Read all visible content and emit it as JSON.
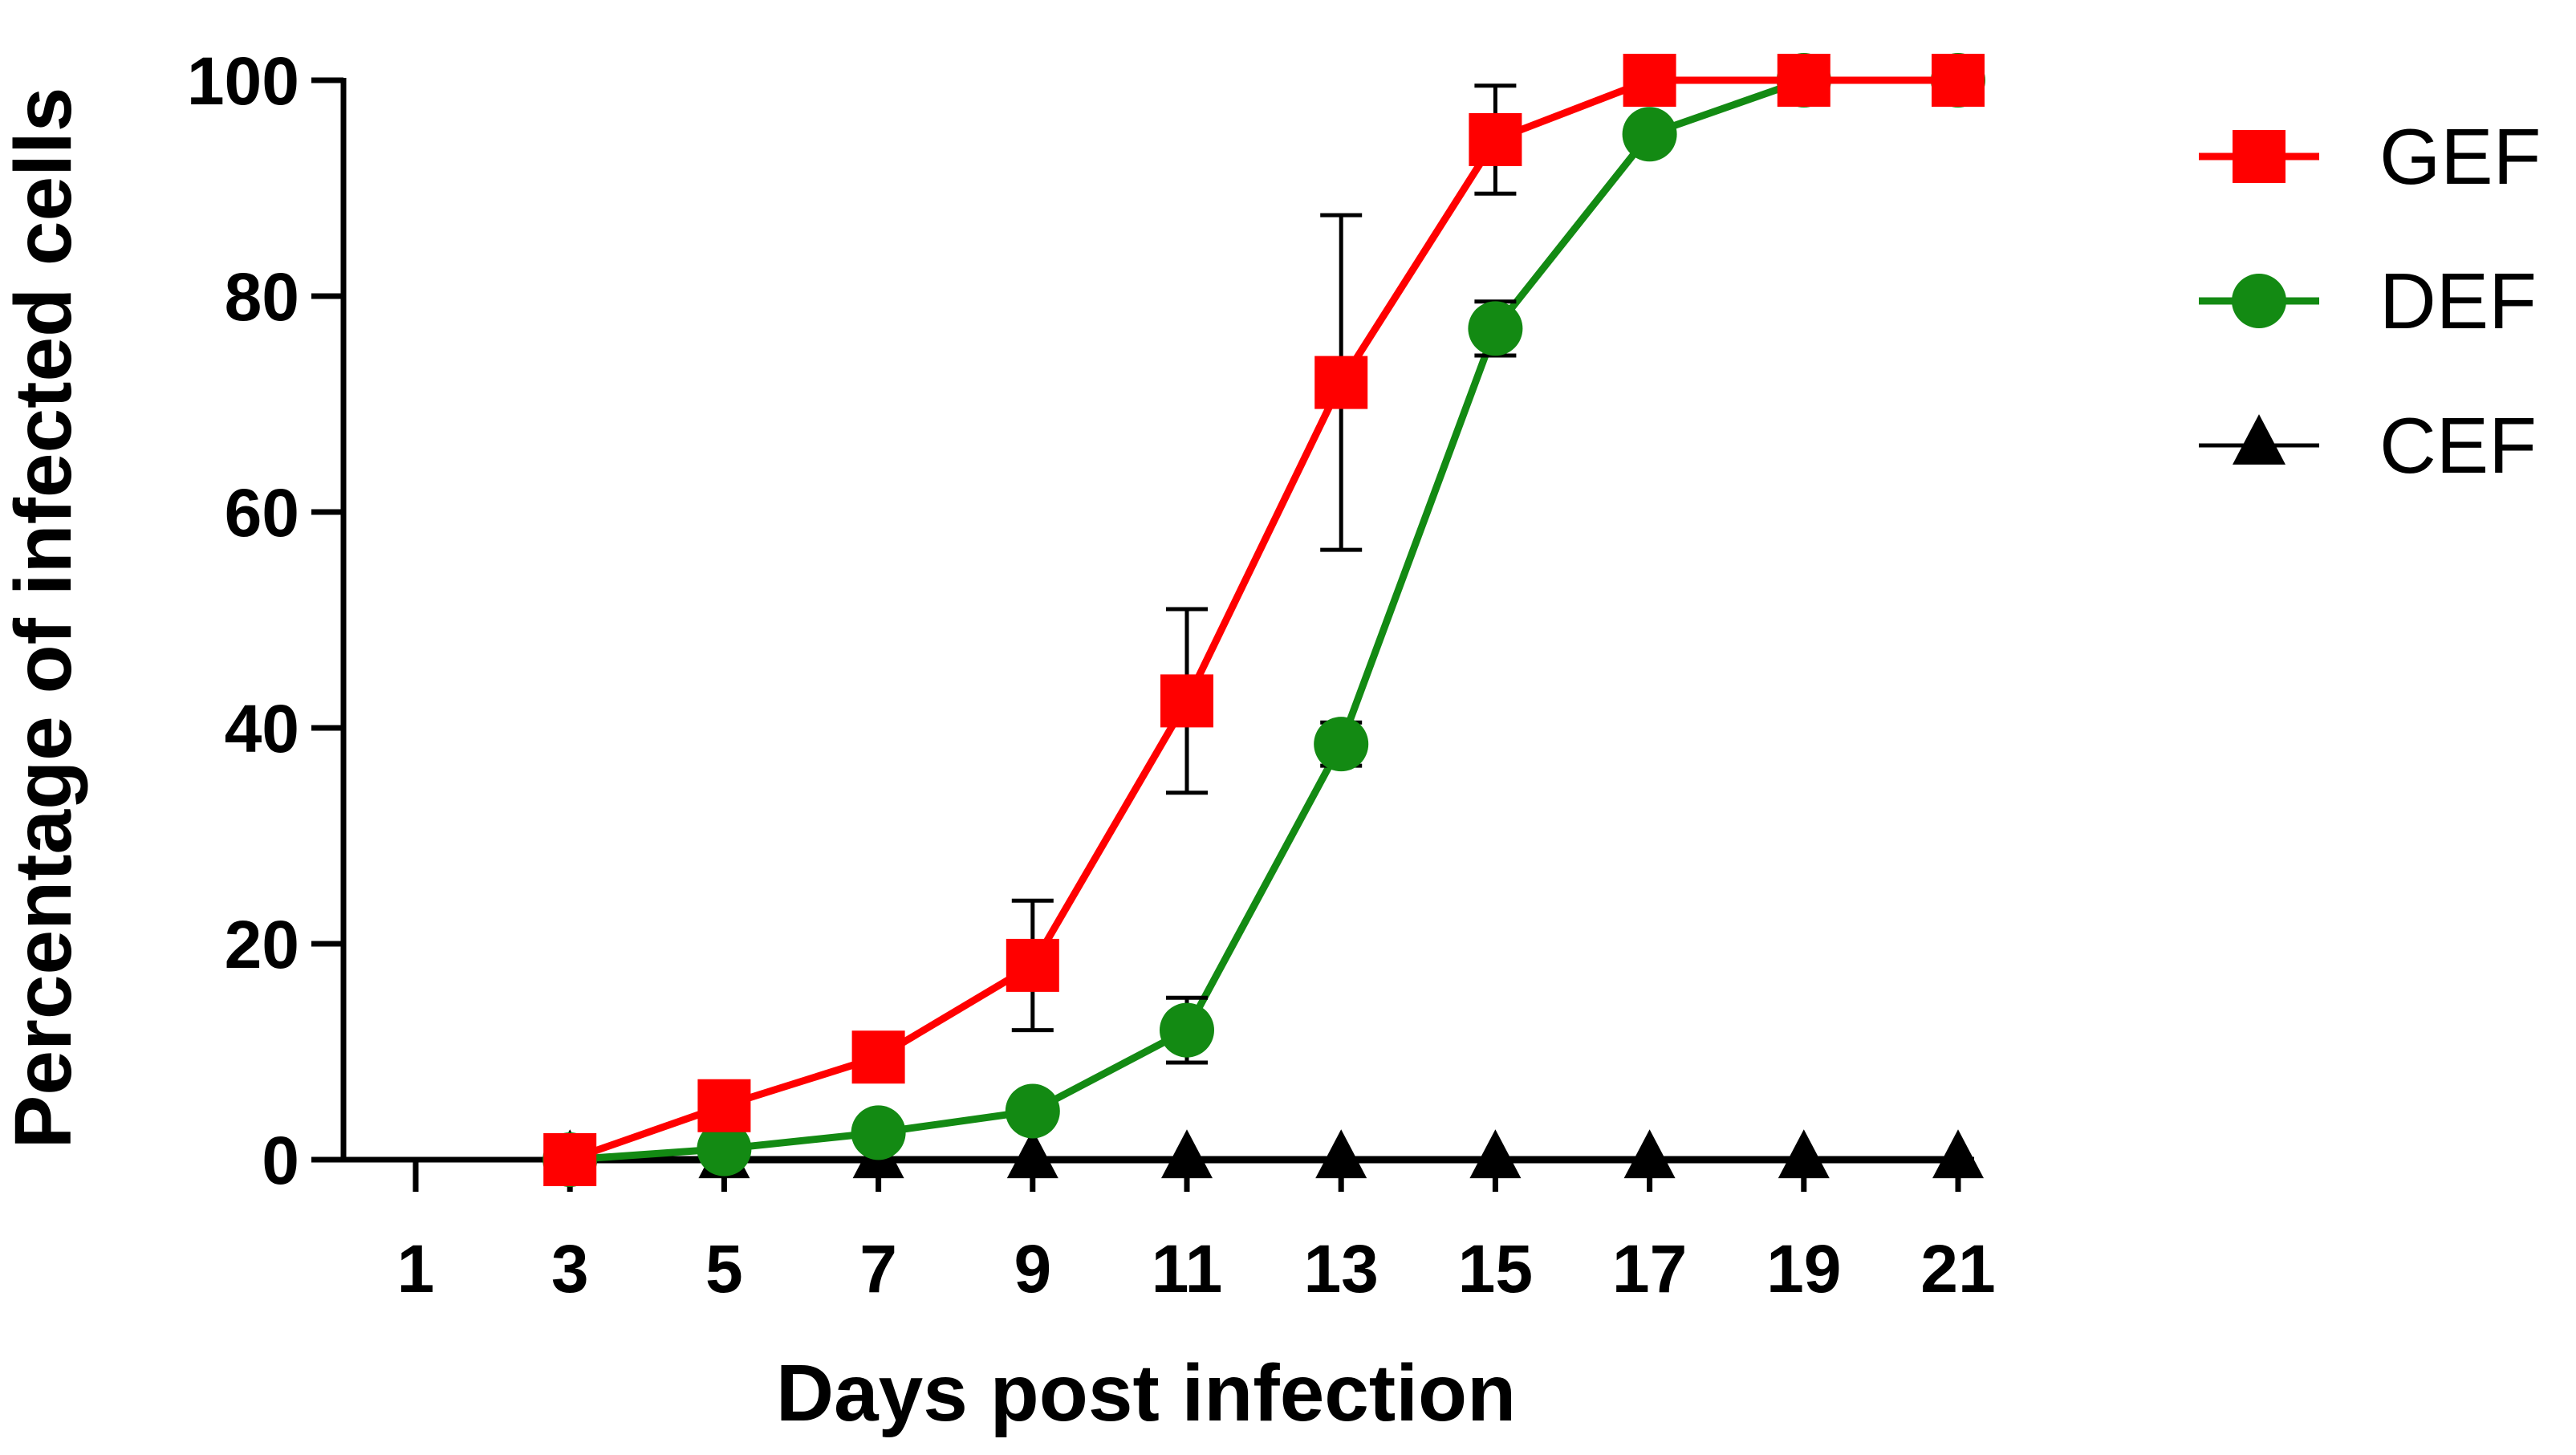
{
  "chart_data": {
    "type": "line",
    "title": "",
    "xlabel": "Days post infection",
    "ylabel": "Percentage of infected cells",
    "x_ticks": [
      "1",
      "3",
      "5",
      "7",
      "9",
      "11",
      "13",
      "15",
      "17",
      "19",
      "21"
    ],
    "y_ticks": [
      "0",
      "20",
      "40",
      "60",
      "80",
      "100"
    ],
    "xlim": [
      1,
      21
    ],
    "ylim": [
      0,
      100
    ],
    "grid": false,
    "legend_position": "top-right",
    "series": [
      {
        "name": "GEF",
        "color": "#ff0000",
        "marker": "square",
        "x": [
          3,
          5,
          7,
          9,
          11,
          13,
          15,
          17,
          19,
          21
        ],
        "values": [
          0,
          5,
          9.5,
          18,
          42.5,
          72,
          94.5,
          100,
          100,
          100
        ],
        "error": [
          0,
          2,
          2,
          6,
          8.5,
          15.5,
          5,
          0,
          0,
          0
        ]
      },
      {
        "name": "DEF",
        "color": "#138a13",
        "marker": "circle",
        "x": [
          3,
          5,
          7,
          9,
          11,
          13,
          15,
          17,
          19,
          21
        ],
        "values": [
          0,
          1,
          2.5,
          4.5,
          12,
          38.5,
          77,
          95,
          100,
          100
        ],
        "error": [
          0,
          0.5,
          0.5,
          0.5,
          3,
          2,
          2.5,
          0,
          0,
          0
        ]
      },
      {
        "name": "CEF",
        "color": "#000000",
        "marker": "triangle",
        "x": [
          3,
          5,
          7,
          9,
          11,
          13,
          15,
          17,
          19,
          21
        ],
        "values": [
          0,
          0,
          0,
          0,
          0,
          0,
          0,
          0,
          0,
          0
        ],
        "error": [
          0,
          0,
          0,
          0,
          0,
          0,
          0,
          0,
          0,
          0
        ]
      }
    ]
  }
}
